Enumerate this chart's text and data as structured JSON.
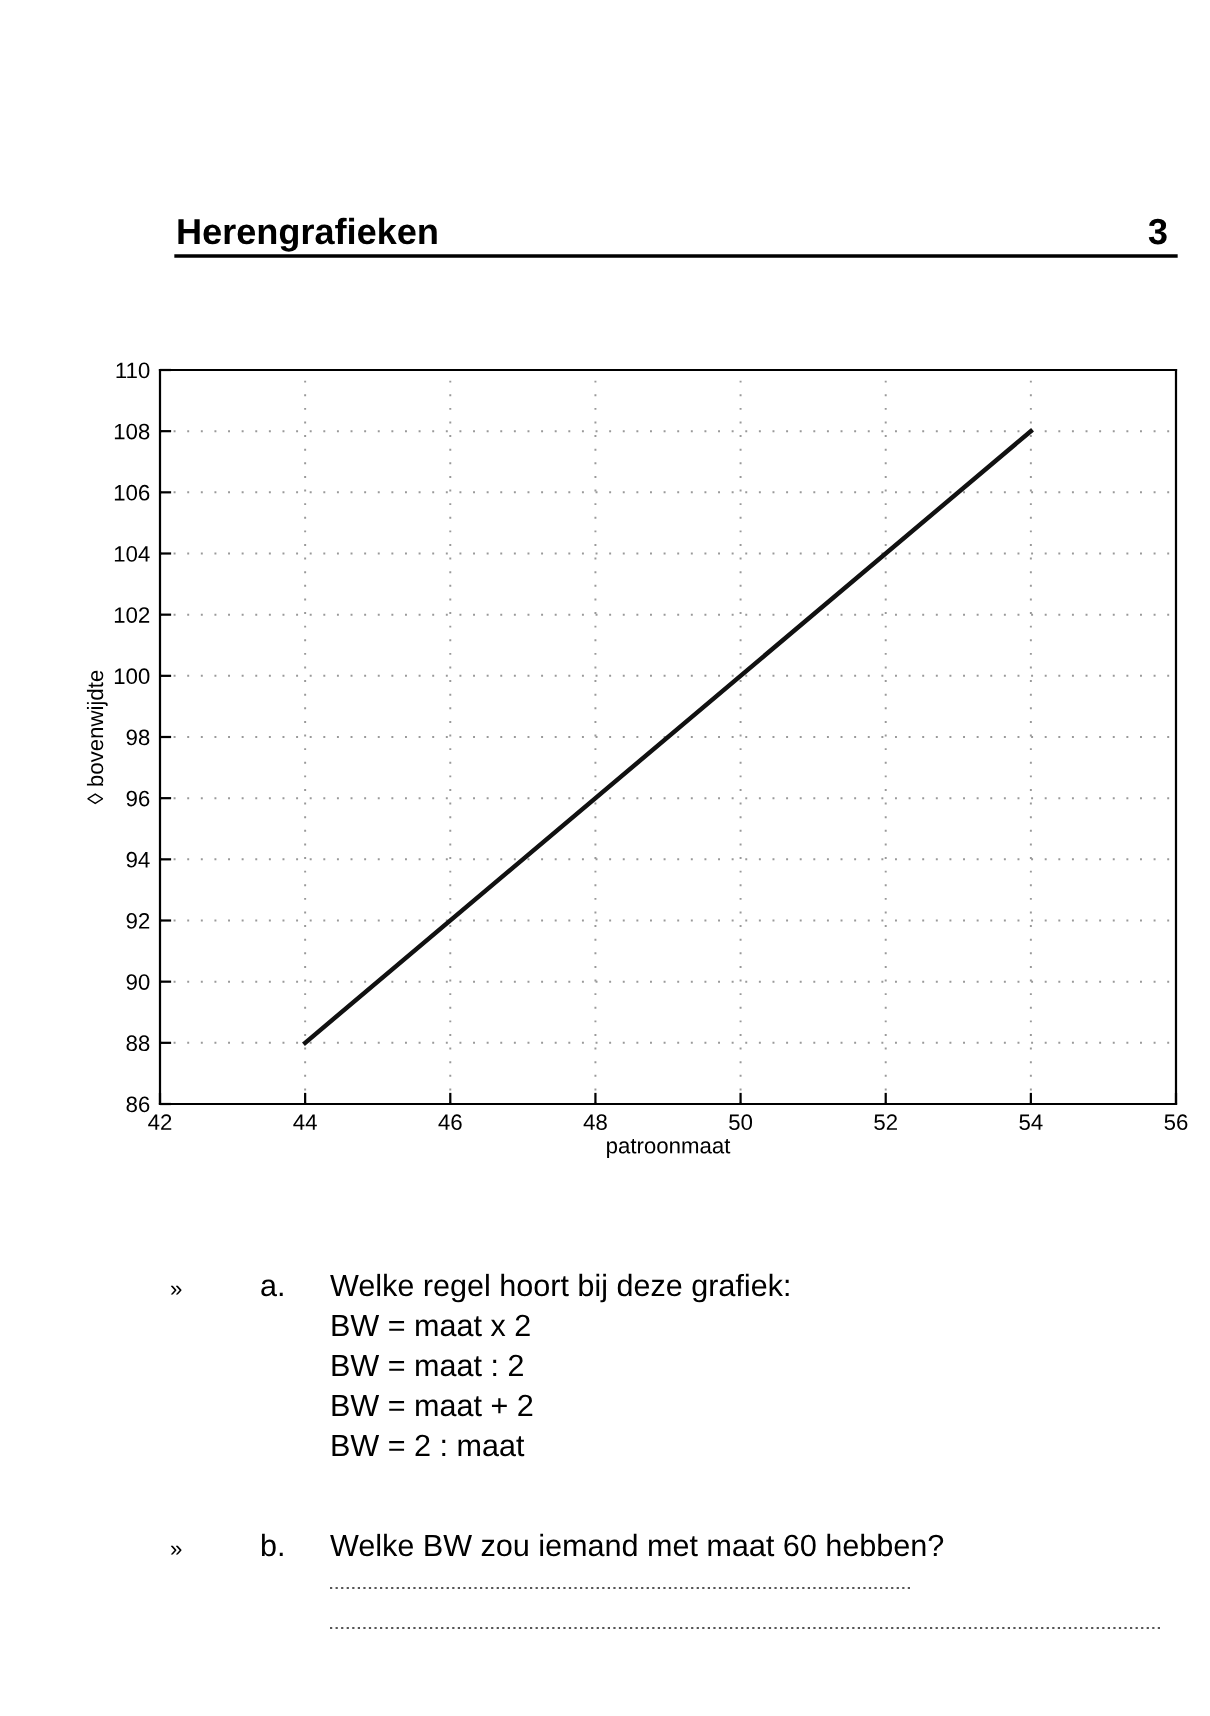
{
  "chart_data": {
    "type": "line",
    "title": "Herengrafieken",
    "subtitle": "3",
    "xlabel": "patroonmaat",
    "ylabel": "◊ bovenwijdte",
    "x": [
      44,
      54
    ],
    "series": [
      {
        "color": "#111111",
        "values": [
          88,
          108
        ]
      }
    ],
    "xlim": [
      42,
      56
    ],
    "xticks": [
      42,
      44,
      46,
      48,
      50,
      52,
      54,
      56
    ],
    "ylim": [
      86,
      110
    ],
    "yticks": [
      86,
      88,
      90,
      92,
      94,
      96,
      98,
      100,
      102,
      104,
      106,
      108,
      110
    ],
    "grid": true,
    "marker": "none",
    "line_style": "solid",
    "annotations": [
      "»",
      "a.",
      "Welke regel hoort bij deze grafiek:",
      "BW = maat x 2",
      "BW = maat : 2",
      "BW = maat + 2",
      "BW = 2 : maat",
      "»",
      "b.",
      "Welke BW zou iemand met maat 60 hebben?"
    ]
  }
}
